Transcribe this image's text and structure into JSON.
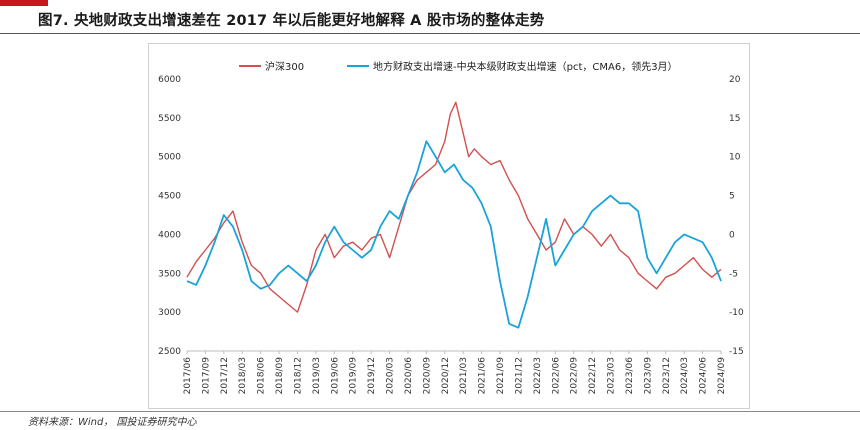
{
  "page": {
    "title": "图7. 央地财政支出增速差在 2017 年以后能更好地解释 A 股市场的整体走势",
    "source": "资料来源：Wind， 国投证券研究中心",
    "accent_color": "#c8161d"
  },
  "chart_data": {
    "type": "line",
    "title": "",
    "x_tick_labels": [
      "2017/06",
      "2017/09",
      "2017/12",
      "2018/03",
      "2018/06",
      "2018/09",
      "2018/12",
      "2019/03",
      "2019/06",
      "2019/09",
      "2019/12",
      "2020/03",
      "2020/06",
      "2020/09",
      "2020/12",
      "2021/03",
      "2021/06",
      "2021/09",
      "2021/12",
      "2022/03",
      "2022/06",
      "2022/09",
      "2022/12",
      "2023/03",
      "2023/06",
      "2023/09",
      "2023/12",
      "2024/03",
      "2024/06",
      "2024/09"
    ],
    "y_left": {
      "min": 2500,
      "max": 6000,
      "ticks": [
        2500,
        3000,
        3500,
        4000,
        4500,
        5000,
        5500,
        6000
      ]
    },
    "y_right": {
      "min": -15,
      "max": 20,
      "ticks": [
        -15,
        -10,
        -5,
        0,
        5,
        10,
        15,
        20
      ]
    },
    "grid": false,
    "legend_position": "top",
    "series": [
      {
        "name": "沪深300",
        "axis": "left",
        "color": "#d25050",
        "x_index": [
          0,
          0.5,
          1,
          1.5,
          2,
          2.5,
          2.8,
          3,
          3.5,
          4,
          4.5,
          5,
          5.5,
          6,
          6.5,
          7,
          7.5,
          8,
          8.5,
          9,
          9.5,
          10,
          10.5,
          11,
          11.5,
          12,
          12.5,
          13,
          13.5,
          14,
          14.3,
          14.6,
          15,
          15.3,
          15.6,
          16,
          16.5,
          17,
          17.5,
          18,
          18.5,
          19,
          19.5,
          20,
          20.5,
          21,
          21.5,
          22,
          22.5,
          23,
          23.5,
          24,
          24.5,
          25,
          25.5,
          26,
          26.5,
          27,
          27.5,
          28,
          28.5,
          29
        ],
        "values": [
          3450,
          3650,
          3800,
          3950,
          4150,
          4300,
          4050,
          3900,
          3600,
          3500,
          3300,
          3200,
          3100,
          3000,
          3350,
          3800,
          4000,
          3700,
          3850,
          3900,
          3800,
          3950,
          4000,
          3700,
          4100,
          4500,
          4700,
          4800,
          4900,
          5200,
          5550,
          5700,
          5300,
          5000,
          5100,
          5000,
          4900,
          4950,
          4700,
          4500,
          4200,
          4000,
          3800,
          3900,
          4200,
          4000,
          4100,
          4000,
          3850,
          4000,
          3800,
          3700,
          3500,
          3400,
          3300,
          3450,
          3500,
          3600,
          3700,
          3550,
          3450,
          3550
        ]
      },
      {
        "name": "地方财政支出增速-中央本级财政支出增速（pct，CMA6，领先3月）",
        "axis": "right",
        "color": "#1aa3d8",
        "x_index": [
          0,
          0.5,
          1,
          1.5,
          2,
          2.5,
          3,
          3.5,
          4,
          4.5,
          5,
          5.5,
          6,
          6.5,
          7,
          7.5,
          8,
          8.5,
          9,
          9.5,
          10,
          10.5,
          11,
          11.5,
          12,
          12.5,
          13,
          13.5,
          14,
          14.5,
          15,
          15.5,
          16,
          16.5,
          17,
          17.5,
          18,
          18.5,
          19,
          19.5,
          20,
          20.5,
          21,
          21.5,
          22,
          22.5,
          23,
          23.5,
          24,
          24.5,
          25,
          25.5,
          26,
          26.5,
          27,
          27.5,
          28,
          28.5,
          29
        ],
        "values": [
          -6,
          -6.5,
          -4,
          -1,
          2.5,
          1,
          -2,
          -6,
          -7,
          -6.5,
          -5,
          -4,
          -5,
          -6,
          -4,
          -1,
          1,
          -1,
          -2,
          -3,
          -2,
          1,
          3,
          2,
          5,
          8,
          12,
          10,
          8,
          9,
          7,
          6,
          4,
          1,
          -6,
          -11.5,
          -12,
          -8,
          -3,
          2,
          -4,
          -2,
          0,
          1,
          3,
          4,
          5,
          4,
          4,
          3,
          -3,
          -5,
          -3,
          -1,
          0,
          -0.5,
          -1,
          -3,
          -6
        ]
      }
    ]
  }
}
